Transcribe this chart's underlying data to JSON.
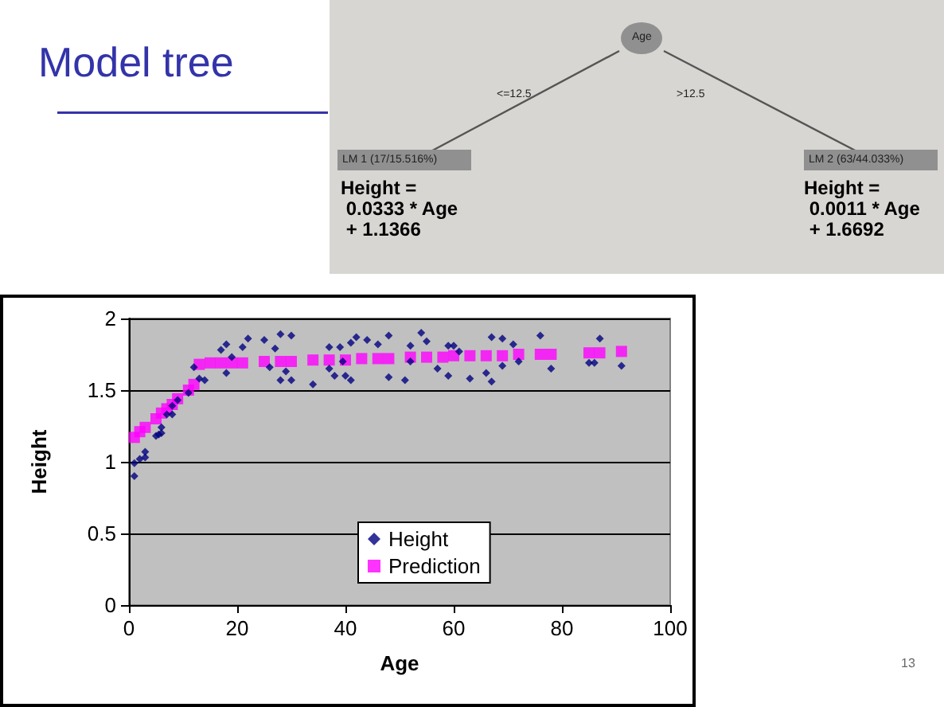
{
  "chart_data": {
    "type": "scatter",
    "title": "Model tree",
    "xlabel": "Age",
    "ylabel": "Height",
    "annotations": [
      "Age",
      "<=12.5",
      ">12.5",
      "LM 1 (17/15.516%)",
      "LM 2 (63/44.033%)",
      "Height =\n 0.0333 * Age\n + 1.1366",
      "Height =\n 0.0011 * Age\n + 1.6692",
      "13"
    ],
    "series": [
      {
        "name": "Height",
        "color": "#000080",
        "marker": "diamond",
        "x": [
          1,
          1,
          2,
          3,
          3,
          5,
          5.5,
          6,
          6,
          7,
          8,
          8,
          9,
          11,
          12,
          13,
          14,
          17,
          18,
          18,
          19,
          21,
          22,
          25,
          26,
          27,
          28,
          28,
          29,
          30,
          30,
          34,
          37,
          37,
          38,
          39,
          39.5,
          40,
          41,
          41,
          42,
          44,
          46,
          48,
          48,
          51,
          52,
          52,
          54,
          55,
          57,
          59,
          60,
          59,
          61,
          63,
          66,
          67,
          67,
          69,
          69,
          71,
          72,
          76,
          78,
          85,
          86,
          87,
          91
        ],
        "values": [
          0.9,
          0.99,
          1.02,
          1.07,
          1.03,
          1.18,
          1.19,
          1.24,
          1.2,
          1.33,
          1.33,
          1.39,
          1.43,
          1.48,
          1.66,
          1.58,
          1.57,
          1.78,
          1.82,
          1.62,
          1.73,
          1.8,
          1.86,
          1.85,
          1.66,
          1.79,
          1.89,
          1.57,
          1.63,
          1.88,
          1.57,
          1.54,
          1.8,
          1.65,
          1.6,
          1.8,
          1.7,
          1.6,
          1.57,
          1.83,
          1.87,
          1.85,
          1.82,
          1.88,
          1.59,
          1.57,
          1.81,
          1.7,
          1.9,
          1.84,
          1.65,
          1.81,
          1.81,
          1.6,
          1.77,
          1.58,
          1.62,
          1.87,
          1.56,
          1.86,
          1.67,
          1.82,
          1.7,
          1.88,
          1.65,
          1.69,
          1.69,
          1.86,
          1.67
        ]
      },
      {
        "name": "Prediction",
        "color": "#ff00ff",
        "marker": "square",
        "x": [
          1,
          2,
          3,
          5,
          6,
          7,
          8,
          9,
          11,
          12,
          13,
          15,
          17,
          19,
          21,
          25,
          28,
          30,
          34,
          37,
          40,
          43,
          46,
          48,
          52,
          55,
          58,
          60,
          63,
          66,
          69,
          72,
          76,
          78,
          85,
          87,
          91
        ],
        "values": [
          1.17,
          1.21,
          1.24,
          1.3,
          1.34,
          1.37,
          1.4,
          1.44,
          1.5,
          1.54,
          1.68,
          1.69,
          1.69,
          1.69,
          1.69,
          1.7,
          1.7,
          1.7,
          1.71,
          1.71,
          1.71,
          1.72,
          1.72,
          1.72,
          1.73,
          1.73,
          1.73,
          1.74,
          1.74,
          1.74,
          1.74,
          1.75,
          1.75,
          1.75,
          1.76,
          1.76,
          1.77
        ]
      }
    ],
    "xlim": [
      0,
      100
    ],
    "xticks": [
      0,
      20,
      40,
      60,
      80,
      100
    ],
    "ylim": [
      0,
      2
    ],
    "yticks": [
      0,
      0.5,
      1,
      1.5,
      2
    ],
    "grid": "y",
    "legend": "bottom"
  }
}
